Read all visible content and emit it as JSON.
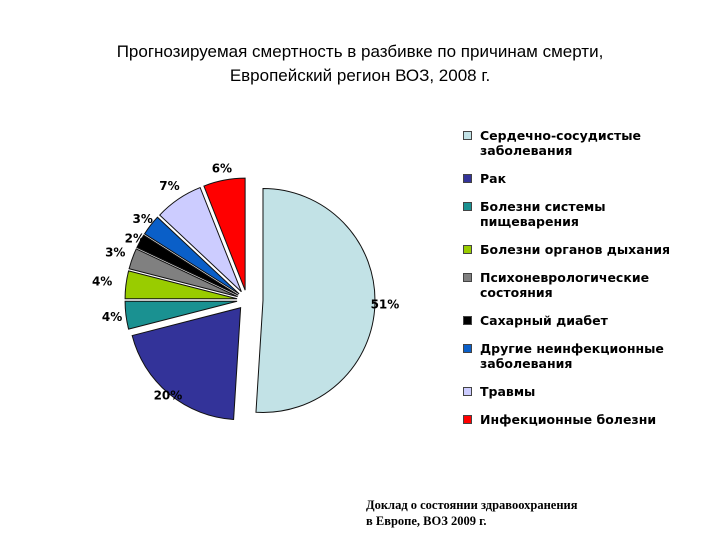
{
  "title": {
    "line1": "Прогнозируемая смертность в разбивке по причинам смерти,",
    "line2": "Европейский регион ВОЗ, 2008 г."
  },
  "chart_data": {
    "type": "pie",
    "legend_position": "right",
    "slices": [
      {
        "label": "Сердечно-сосудистые заболевания",
        "value": 51,
        "data_label": "51%",
        "color": "#c2e2e6"
      },
      {
        "label": "Рак",
        "value": 20,
        "data_label": "20%",
        "color": "#333399"
      },
      {
        "label": "Болезни системы пищеварения",
        "value": 4,
        "data_label": "4%",
        "color": "#1a9191"
      },
      {
        "label": "Болезни органов дыхания",
        "value": 4,
        "data_label": "4%",
        "color": "#99cc00"
      },
      {
        "label": "Психоневрологические состояния",
        "value": 3,
        "data_label": "3%",
        "color": "#808080"
      },
      {
        "label": "Сахарный диабет",
        "value": 2,
        "data_label": "2%",
        "color": "#000000"
      },
      {
        "label": "Другие неинфекционные заболевания",
        "value": 3,
        "data_label": "3%",
        "color": "#0a5fc8"
      },
      {
        "label": "Травмы",
        "value": 7,
        "data_label": "7%",
        "color": "#ccccff"
      },
      {
        "label": "Инфекционные болезни",
        "value": 6,
        "data_label": "6%",
        "color": "#ff0000"
      }
    ],
    "legend_lines": [
      [
        "Сердечно-сосудистые",
        "заболевания"
      ],
      [
        "Рак"
      ],
      [
        "Болезни системы",
        "пищеварения"
      ],
      [
        "Болезни органов дыхания"
      ],
      [
        "Психоневрологические",
        "состояния"
      ],
      [
        "Сахарный диабет"
      ],
      [
        "Другие неинфекционные",
        "заболевания"
      ],
      [
        "Травмы"
      ],
      [
        "Инфекционные болезни"
      ]
    ]
  },
  "source": {
    "line1": "Доклад о состоянии здравоохранения",
    "line2": "в Европе, ВОЗ 2009 г."
  }
}
